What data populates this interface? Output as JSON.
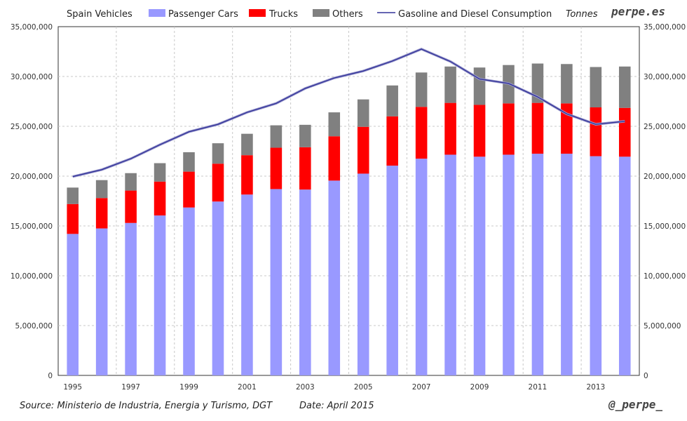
{
  "chart_data": {
    "type": "bar",
    "stacked": true,
    "title": "Spain Vehicles",
    "right_axis_unit": "Tonnes",
    "brand": "perpe.es",
    "handle": "@_perpe_",
    "source": "Source: Ministerio de Industria, Energia y Turismo, DGT",
    "date": "Date: April 2015",
    "years": [
      1995,
      1996,
      1997,
      1998,
      1999,
      2000,
      2001,
      2002,
      2003,
      2004,
      2005,
      2006,
      2007,
      2008,
      2009,
      2010,
      2011,
      2012,
      2013,
      2014
    ],
    "x_tick_labels": [
      "1995",
      "1997",
      "1999",
      "2001",
      "2003",
      "2005",
      "2007",
      "2009",
      "2011",
      "2013"
    ],
    "ylim": [
      0,
      35000000
    ],
    "y_tick_labels": [
      "0",
      "5,000,000",
      "10,000,000",
      "15,000,000",
      "20,000,000",
      "25,000,000",
      "30,000,000",
      "35,000,000"
    ],
    "y2_tick_labels": [
      "0",
      "5,000,000",
      "10,000,000",
      "15,000,000",
      "20,000,000",
      "25,000,000",
      "30,000,000",
      "35,000,000"
    ],
    "series": [
      {
        "name": "Passenger Cars",
        "color": "#9999ff",
        "values": [
          14200000,
          14750000,
          15300000,
          16050000,
          16850000,
          17450000,
          18150000,
          18700000,
          18650000,
          19550000,
          20250000,
          21050000,
          21750000,
          22150000,
          21950000,
          22150000,
          22250000,
          22250000,
          22000000,
          21950000
        ]
      },
      {
        "name": "Trucks",
        "color": "#ff0000",
        "values": [
          3000000,
          3050000,
          3250000,
          3400000,
          3600000,
          3800000,
          3950000,
          4150000,
          4250000,
          4450000,
          4700000,
          4950000,
          5200000,
          5200000,
          5200000,
          5150000,
          5100000,
          5050000,
          4900000,
          4900000
        ]
      },
      {
        "name": "Others",
        "color": "#808080",
        "values": [
          1650000,
          1800000,
          1750000,
          1850000,
          1950000,
          2050000,
          2150000,
          2250000,
          2250000,
          2400000,
          2750000,
          3100000,
          3450000,
          3650000,
          3750000,
          3850000,
          3950000,
          3950000,
          4050000,
          4150000
        ]
      },
      {
        "name": "Gasoline and Diesel Consumption",
        "color": "#333399",
        "type": "line",
        "values": [
          19950000,
          20650000,
          21750000,
          23150000,
          24450000,
          25200000,
          26400000,
          27300000,
          28800000,
          29850000,
          30550000,
          31550000,
          32750000,
          31500000,
          29750000,
          29300000,
          27950000,
          26250000,
          25200000,
          25500000
        ]
      }
    ]
  }
}
